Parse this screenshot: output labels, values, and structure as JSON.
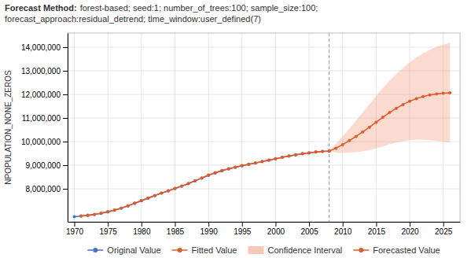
{
  "chart_data": {
    "type": "line",
    "title": "Forecast Method:",
    "subtitle": "forest-based; seed:1; number_of_trees:100; sample_size:100;\nforecast_approach:residual_detrend; time_window:user_defined(7)",
    "ylabel": "NPOPULATION_NONE_ZEROS",
    "xlim": [
      1969.0,
      2027.5
    ],
    "ylim": [
      6600000,
      14600000
    ],
    "xticks": [
      1970,
      1975,
      1980,
      1985,
      1990,
      1995,
      2000,
      2005,
      2010,
      2015,
      2020,
      2025
    ],
    "yticks": [
      {
        "value": 8000000,
        "label": "8,000,000"
      },
      {
        "value": 9000000,
        "label": "9,000,000"
      },
      {
        "value": 10000000,
        "label": "10,000,000"
      },
      {
        "value": 11000000,
        "label": "11,000,000"
      },
      {
        "value": 12000000,
        "label": "12,000,000"
      },
      {
        "value": 13000000,
        "label": "13,000,000"
      },
      {
        "value": 14000000,
        "label": "14,000,000"
      }
    ],
    "grid": true,
    "legend": "bottom",
    "vline": 2008,
    "series": [
      {
        "name": "Original Value",
        "type": "line",
        "color": "#4472c4",
        "marker": "circle",
        "line_style": "solid",
        "x": [
          1970,
          1971,
          1972,
          1973,
          1974,
          1975,
          1976,
          1977,
          1978,
          1979,
          1980,
          1981,
          1982,
          1983,
          1984,
          1985,
          1986,
          1987,
          1988,
          1989,
          1990,
          1991,
          1992,
          1993,
          1994,
          1995,
          1996,
          1997,
          1998,
          1999,
          2000,
          2001,
          2002,
          2003,
          2004,
          2005,
          2006,
          2007,
          2008
        ],
        "values": [
          6820000,
          6840000,
          6870000,
          6910000,
          6960000,
          7020000,
          7090000,
          7175000,
          7270000,
          7380000,
          7490000,
          7600000,
          7710000,
          7815000,
          7910000,
          8010000,
          8110000,
          8215000,
          8330000,
          8450000,
          8570000,
          8670000,
          8760000,
          8840000,
          8910000,
          8975000,
          9035000,
          9090000,
          9150000,
          9210000,
          9270000,
          9330000,
          9385000,
          9435000,
          9480000,
          9520000,
          9555000,
          9580000,
          9590000
        ]
      },
      {
        "name": "Fitted Value",
        "type": "line",
        "color": "#e05c2a",
        "marker": "circle",
        "line_style": "solid",
        "x": [
          1971,
          1972,
          1973,
          1974,
          1975,
          1976,
          1977,
          1978,
          1979,
          1980,
          1981,
          1982,
          1983,
          1984,
          1985,
          1986,
          1987,
          1988,
          1989,
          1990,
          1991,
          1992,
          1993,
          1994,
          1995,
          1996,
          1997,
          1998,
          1999,
          2000,
          2001,
          2002,
          2003,
          2004,
          2005,
          2006,
          2007,
          2008
        ],
        "values": [
          6850000,
          6880000,
          6920000,
          6970000,
          7030000,
          7100000,
          7185000,
          7285000,
          7395000,
          7500000,
          7610000,
          7720000,
          7820000,
          7915000,
          8020000,
          8120000,
          8225000,
          8345000,
          8460000,
          8585000,
          8685000,
          8775000,
          8850000,
          8920000,
          8985000,
          9040000,
          9095000,
          9155000,
          9215000,
          9275000,
          9335000,
          9390000,
          9440000,
          9488000,
          9525000,
          9558000,
          9582000,
          9600000
        ]
      },
      {
        "name": "Confidence Interval",
        "type": "band",
        "color": "#f4a58a",
        "x": [
          2008,
          2009,
          2010,
          2011,
          2012,
          2013,
          2014,
          2015,
          2016,
          2017,
          2018,
          2019,
          2020,
          2021,
          2022,
          2023,
          2024,
          2025,
          2026
        ],
        "lower": [
          9600000,
          9530000,
          9520000,
          9530000,
          9550000,
          9590000,
          9640000,
          9710000,
          9790000,
          9880000,
          9960000,
          10020000,
          10060000,
          10080000,
          10080000,
          10060000,
          10030000,
          9990000,
          9950000
        ],
        "upper": [
          9600000,
          9910000,
          10220000,
          10550000,
          10890000,
          11230000,
          11580000,
          11930000,
          12270000,
          12580000,
          12860000,
          13120000,
          13360000,
          13560000,
          13740000,
          13890000,
          14010000,
          14110000,
          14190000
        ]
      },
      {
        "name": "Forecasted Value",
        "type": "line",
        "color": "#e05c2a",
        "marker": "circle",
        "line_style": "solid",
        "x": [
          2008,
          2009,
          2010,
          2011,
          2012,
          2013,
          2014,
          2015,
          2016,
          2017,
          2018,
          2019,
          2020,
          2021,
          2022,
          2023,
          2024,
          2025,
          2026
        ],
        "values": [
          9600000,
          9720000,
          9870000,
          10040000,
          10220000,
          10410000,
          10610000,
          10820000,
          11030000,
          11230000,
          11410000,
          11570000,
          11710000,
          11820000,
          11910000,
          11975000,
          12020000,
          12050000,
          12070000
        ]
      }
    ]
  }
}
